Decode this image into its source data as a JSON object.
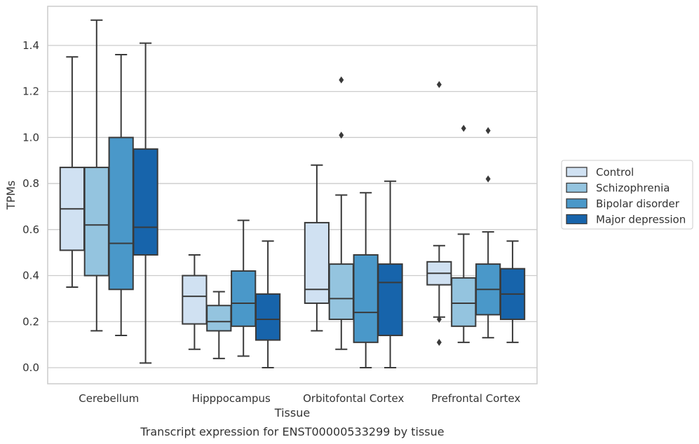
{
  "caption": "Transcript expression for ENST00000533299 by tissue",
  "chart_data": {
    "type": "boxplot",
    "xlabel": "Tissue",
    "ylabel": "TPMs",
    "ylim": [
      -0.07,
      1.57
    ],
    "yticks": [
      "0.0",
      "0.2",
      "0.4",
      "0.6",
      "0.8",
      "1.0",
      "1.2",
      "1.4"
    ],
    "grid": "horizontal",
    "legend_position": "right",
    "categories": [
      "Cerebellum",
      "Hipppocampus",
      "Orbitofontal Cortex",
      "Prefrontal Cortex"
    ],
    "series": [
      {
        "name": "Control",
        "color": "#d0e1f2",
        "boxes": [
          {
            "min": 0.35,
            "q1": 0.51,
            "median": 0.69,
            "q3": 0.87,
            "max": 1.35,
            "outliers": []
          },
          {
            "min": 0.08,
            "q1": 0.19,
            "median": 0.31,
            "q3": 0.4,
            "max": 0.49,
            "outliers": []
          },
          {
            "min": 0.16,
            "q1": 0.28,
            "median": 0.34,
            "q3": 0.63,
            "max": 0.88,
            "outliers": []
          },
          {
            "min": 0.22,
            "q1": 0.36,
            "median": 0.41,
            "q3": 0.46,
            "max": 0.53,
            "outliers": [
              0.21,
              0.11,
              1.23
            ]
          }
        ]
      },
      {
        "name": "Schizophrenia",
        "color": "#94c4df",
        "boxes": [
          {
            "min": 0.16,
            "q1": 0.4,
            "median": 0.62,
            "q3": 0.87,
            "max": 1.51,
            "outliers": []
          },
          {
            "min": 0.04,
            "q1": 0.16,
            "median": 0.2,
            "q3": 0.27,
            "max": 0.33,
            "outliers": []
          },
          {
            "min": 0.08,
            "q1": 0.21,
            "median": 0.3,
            "q3": 0.45,
            "max": 0.75,
            "outliers": [
              1.01,
              1.25
            ]
          },
          {
            "min": 0.11,
            "q1": 0.18,
            "median": 0.28,
            "q3": 0.39,
            "max": 0.58,
            "outliers": [
              1.04
            ]
          }
        ]
      },
      {
        "name": "Bipolar disorder",
        "color": "#4a98c9",
        "boxes": [
          {
            "min": 0.14,
            "q1": 0.34,
            "median": 0.54,
            "q3": 1.0,
            "max": 1.36,
            "outliers": []
          },
          {
            "min": 0.05,
            "q1": 0.18,
            "median": 0.28,
            "q3": 0.42,
            "max": 0.64,
            "outliers": []
          },
          {
            "min": 0.0,
            "q1": 0.11,
            "median": 0.24,
            "q3": 0.49,
            "max": 0.76,
            "outliers": []
          },
          {
            "min": 0.13,
            "q1": 0.23,
            "median": 0.34,
            "q3": 0.45,
            "max": 0.59,
            "outliers": [
              0.82,
              1.03
            ]
          }
        ]
      },
      {
        "name": "Major depression",
        "color": "#1764ab",
        "boxes": [
          {
            "min": 0.02,
            "q1": 0.49,
            "median": 0.61,
            "q3": 0.95,
            "max": 1.41,
            "outliers": []
          },
          {
            "min": 0.0,
            "q1": 0.12,
            "median": 0.21,
            "q3": 0.32,
            "max": 0.55,
            "outliers": []
          },
          {
            "min": 0.0,
            "q1": 0.14,
            "median": 0.37,
            "q3": 0.45,
            "max": 0.81,
            "outliers": []
          },
          {
            "min": 0.11,
            "q1": 0.21,
            "median": 0.32,
            "q3": 0.43,
            "max": 0.55,
            "outliers": []
          }
        ]
      }
    ]
  }
}
